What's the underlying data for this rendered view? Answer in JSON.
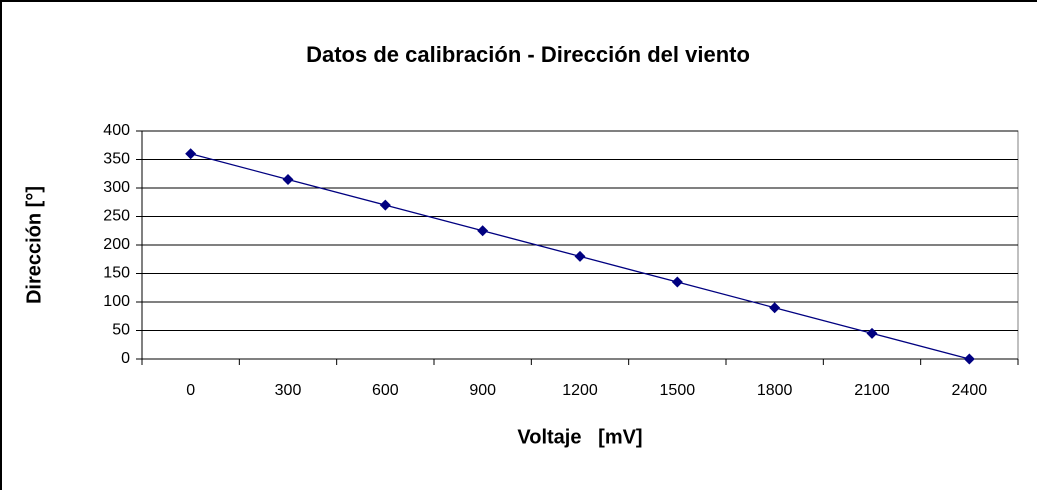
{
  "chart_data": {
    "type": "line",
    "title": "Datos de calibración - Dirección del viento",
    "x_label": "Voltaje   [mV]",
    "y_label": "Dirección [°]",
    "categories": [
      0,
      300,
      600,
      900,
      1200,
      1500,
      1800,
      2100,
      2400
    ],
    "series": [
      {
        "name": "Dirección",
        "color": "#000080",
        "values": [
          360,
          315,
          270,
          225,
          180,
          135,
          90,
          45,
          0
        ]
      }
    ],
    "ylim": [
      0,
      400
    ],
    "yticks": [
      0,
      50,
      100,
      150,
      200,
      250,
      300,
      350,
      400
    ],
    "grid": true
  }
}
